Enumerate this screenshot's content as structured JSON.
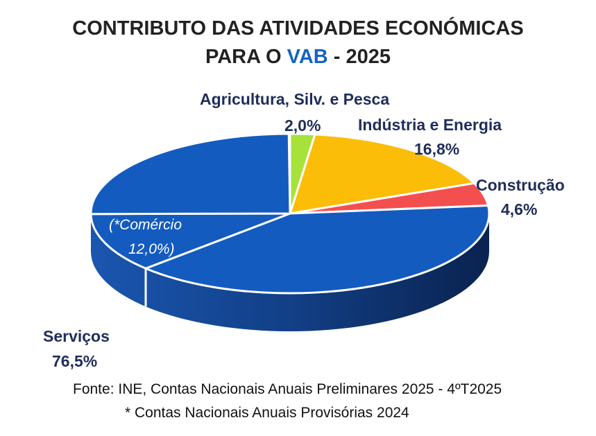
{
  "chart_data": {
    "type": "pie",
    "title_line1": "CONTRIBUTO DAS ATIVIDADES ECONÓMICAS",
    "title_line2_prefix": "PARA O ",
    "title_line2_highlight": "VAB",
    "title_line2_suffix": " - 2025",
    "slices": [
      {
        "label": "Agricultura, Silv. e Pesca",
        "value": 2.0,
        "value_label": "2,0%",
        "color": "#a6e23a"
      },
      {
        "label": "Indústria e Energia",
        "value": 16.8,
        "value_label": "16,8%",
        "color": "#fbbd08"
      },
      {
        "label": "Construção",
        "value": 4.6,
        "value_label": "4,6%",
        "color": "#f44f4f"
      },
      {
        "label": "Serviços",
        "value": 76.5,
        "value_label": "76,5%",
        "color": "#135bbf"
      }
    ],
    "services_segments": [
      39.5,
      12.0,
      25.0
    ],
    "annotation_line1": "(*Comércio",
    "annotation_line2": "12,0%)",
    "title_highlight_color": "#1565c0"
  },
  "footer": {
    "source": "Fonte: INE, Contas Nacionais Anuais Preliminares 2025 - 4ºT2025",
    "note": "* Contas Nacionais Anuais Provisórias 2024"
  }
}
